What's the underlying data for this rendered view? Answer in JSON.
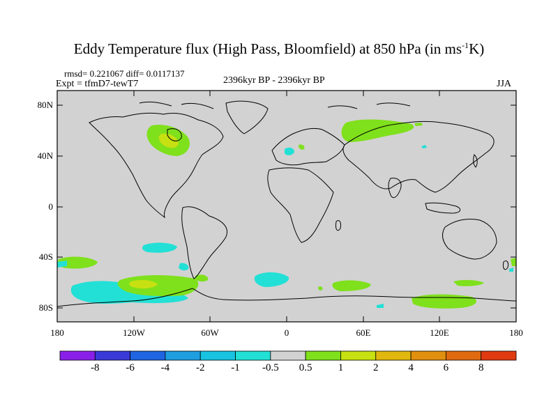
{
  "title_main": "Eddy Temperature flux (High Pass, Bloomfield) at 850 hPa (in ms",
  "title_sup": "-1",
  "title_end": "K)",
  "rmsd_text": "rmsd= 0.221067 diff= 0.0117137",
  "expt_text": "Expt = tfmD7-tewT7",
  "period_text": "2396kyr BP - 2396kyr BP",
  "season_text": "JJA",
  "y_ticks": [
    "80N",
    "40N",
    "0",
    "40S",
    "80S"
  ],
  "x_ticks": [
    "180",
    "120W",
    "60W",
    "0",
    "60E",
    "120E",
    "180"
  ],
  "colorbar": {
    "colors": [
      "#8a20e8",
      "#3a3ad8",
      "#1f64e0",
      "#1f9ee0",
      "#17c3e0",
      "#22e0d6",
      "#d2d2d2",
      "#7fe01c",
      "#c6e012",
      "#e0b80e",
      "#e0900e",
      "#e06a10",
      "#e03a10"
    ],
    "labels": [
      "-8",
      "-6",
      "-4",
      "-2",
      "-1",
      "-0.5",
      "0.5",
      "1",
      "2",
      "4",
      "6",
      "8"
    ]
  },
  "colors": {
    "land_sea_background": "#d2d2d2",
    "positive_1": "#7fe01c",
    "positive_2": "#c6e012",
    "negative_1": "#22e0d6",
    "coast": "#000000"
  }
}
